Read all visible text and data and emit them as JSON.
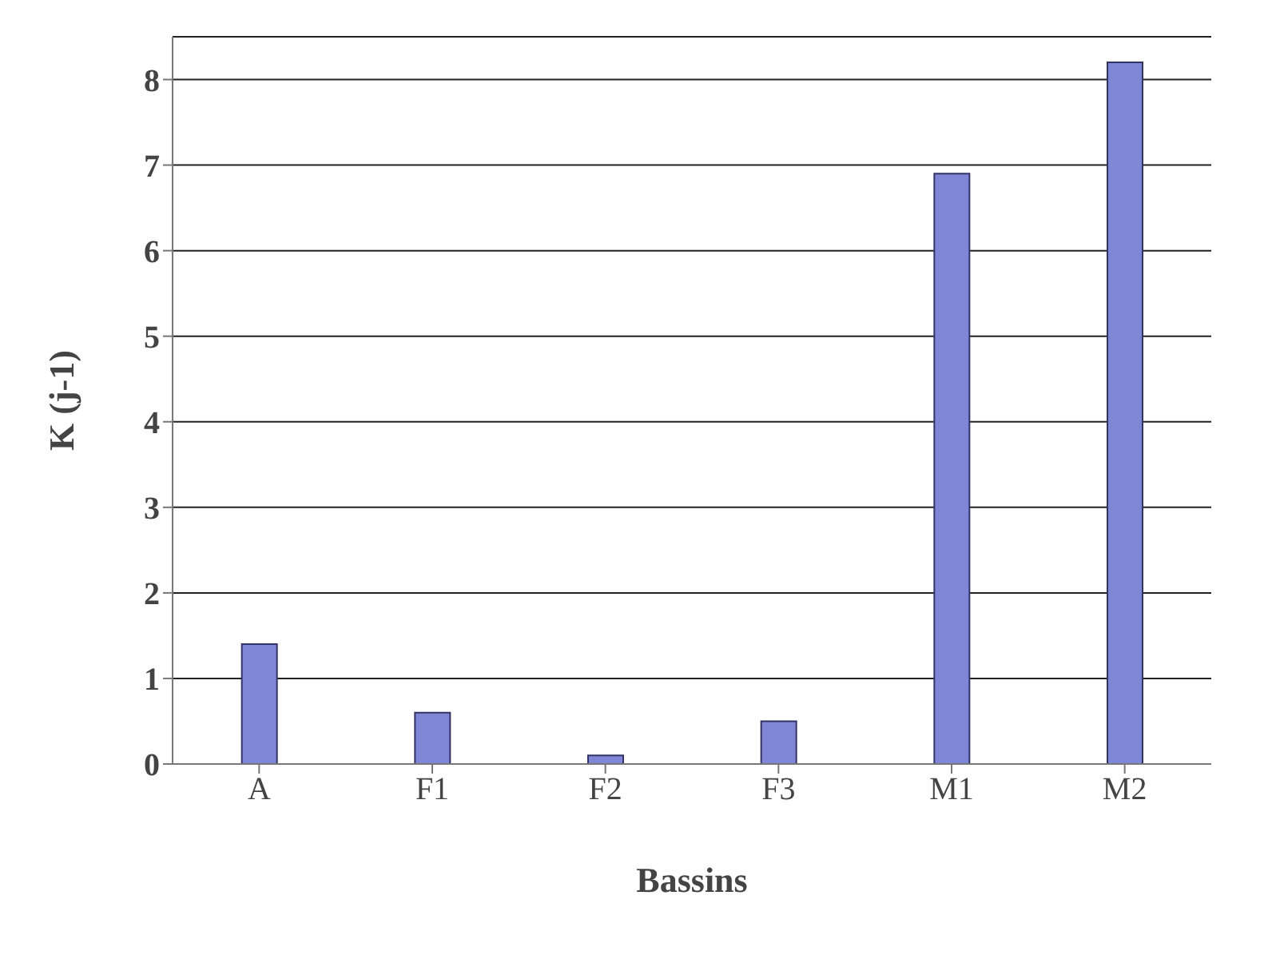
{
  "chart_data": {
    "type": "bar",
    "xlabel": "Bassins",
    "ylabel": "K (j-1)",
    "categories": [
      "A",
      "F1",
      "F2",
      "F3",
      "M1",
      "M2"
    ],
    "values": [
      1.4,
      0.6,
      0.1,
      0.5,
      6.9,
      8.2
    ],
    "color": "#7f86d6",
    "ylim": [
      0,
      8.5
    ],
    "yticks": [
      0,
      1,
      2,
      3,
      4,
      5,
      6,
      7,
      8
    ],
    "grid": "y"
  }
}
